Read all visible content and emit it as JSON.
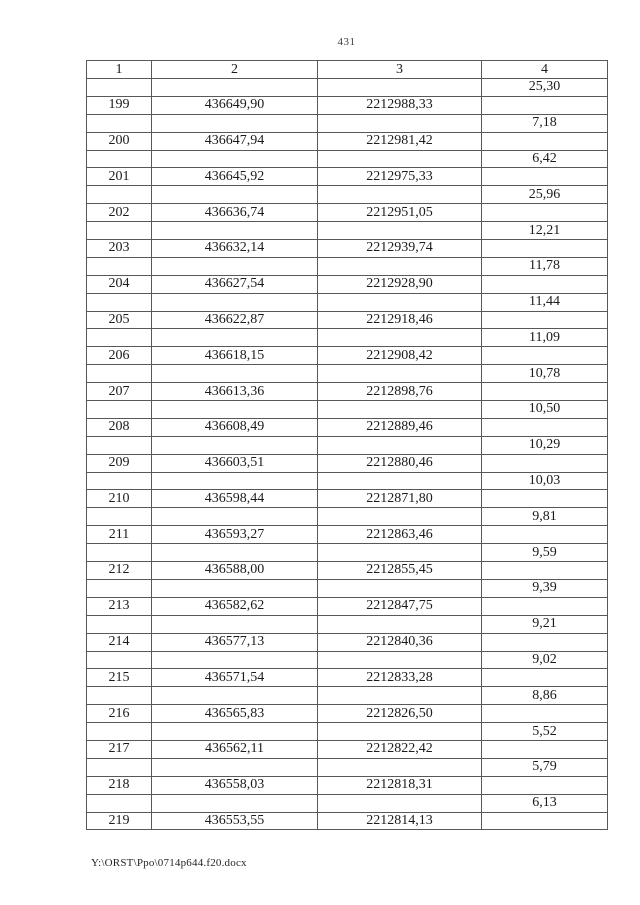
{
  "page": {
    "number": "431",
    "footer_path": "Y:\\ORST\\Ppo\\0714p644.f20.docx"
  },
  "table": {
    "headers": [
      "1",
      "2",
      "3",
      "4"
    ],
    "rows": [
      [
        "",
        "",
        "",
        "25,30"
      ],
      [
        "199",
        "436649,90",
        "2212988,33",
        ""
      ],
      [
        "",
        "",
        "",
        "7,18"
      ],
      [
        "200",
        "436647,94",
        "2212981,42",
        ""
      ],
      [
        "",
        "",
        "",
        "6,42"
      ],
      [
        "201",
        "436645,92",
        "2212975,33",
        ""
      ],
      [
        "",
        "",
        "",
        "25,96"
      ],
      [
        "202",
        "436636,74",
        "2212951,05",
        ""
      ],
      [
        "",
        "",
        "",
        "12,21"
      ],
      [
        "203",
        "436632,14",
        "2212939,74",
        ""
      ],
      [
        "",
        "",
        "",
        "11,78"
      ],
      [
        "204",
        "436627,54",
        "2212928,90",
        ""
      ],
      [
        "",
        "",
        "",
        "11,44"
      ],
      [
        "205",
        "436622,87",
        "2212918,46",
        ""
      ],
      [
        "",
        "",
        "",
        "11,09"
      ],
      [
        "206",
        "436618,15",
        "2212908,42",
        ""
      ],
      [
        "",
        "",
        "",
        "10,78"
      ],
      [
        "207",
        "436613,36",
        "2212898,76",
        ""
      ],
      [
        "",
        "",
        "",
        "10,50"
      ],
      [
        "208",
        "436608,49",
        "2212889,46",
        ""
      ],
      [
        "",
        "",
        "",
        "10,29"
      ],
      [
        "209",
        "436603,51",
        "2212880,46",
        ""
      ],
      [
        "",
        "",
        "",
        "10,03"
      ],
      [
        "210",
        "436598,44",
        "2212871,80",
        ""
      ],
      [
        "",
        "",
        "",
        "9,81"
      ],
      [
        "211",
        "436593,27",
        "2212863,46",
        ""
      ],
      [
        "",
        "",
        "",
        "9,59"
      ],
      [
        "212",
        "436588,00",
        "2212855,45",
        ""
      ],
      [
        "",
        "",
        "",
        "9,39"
      ],
      [
        "213",
        "436582,62",
        "2212847,75",
        ""
      ],
      [
        "",
        "",
        "",
        "9,21"
      ],
      [
        "214",
        "436577,13",
        "2212840,36",
        ""
      ],
      [
        "",
        "",
        "",
        "9,02"
      ],
      [
        "215",
        "436571,54",
        "2212833,28",
        ""
      ],
      [
        "",
        "",
        "",
        "8,86"
      ],
      [
        "216",
        "436565,83",
        "2212826,50",
        ""
      ],
      [
        "",
        "",
        "",
        "5,52"
      ],
      [
        "217",
        "436562,11",
        "2212822,42",
        ""
      ],
      [
        "",
        "",
        "",
        "5,79"
      ],
      [
        "218",
        "436558,03",
        "2212818,31",
        ""
      ],
      [
        "",
        "",
        "",
        "6,13"
      ],
      [
        "219",
        "436553,55",
        "2212814,13",
        ""
      ]
    ]
  }
}
